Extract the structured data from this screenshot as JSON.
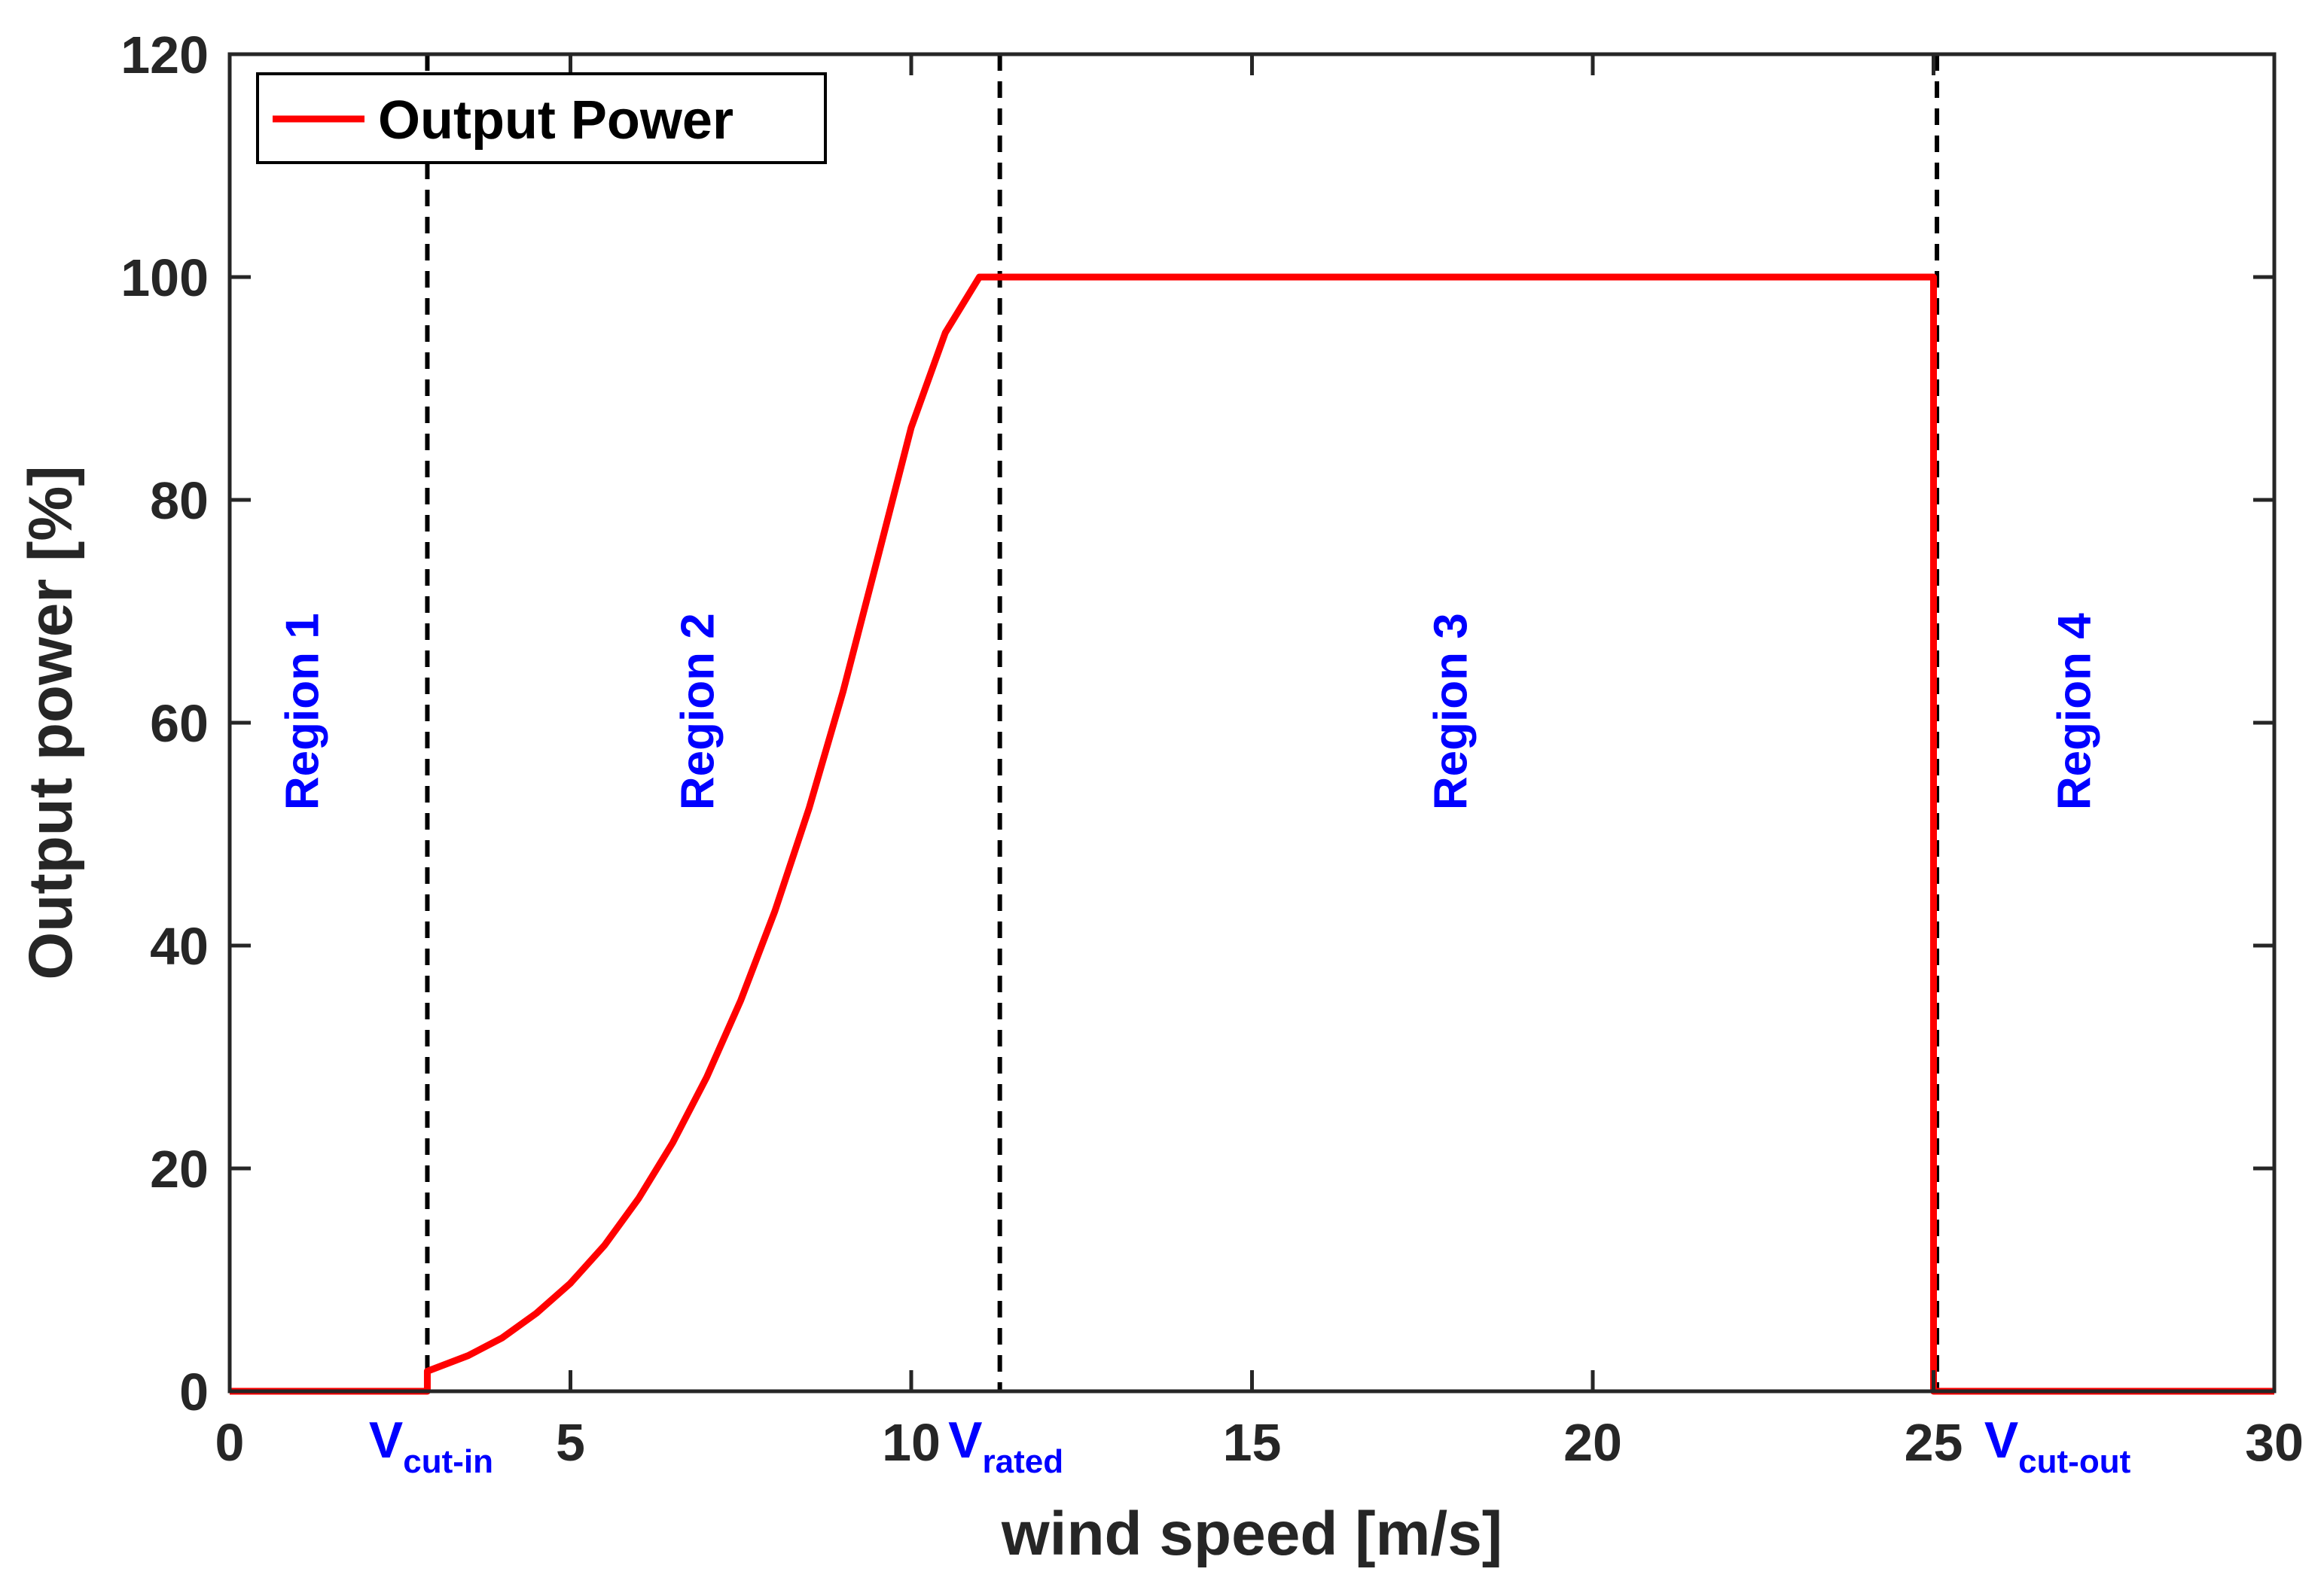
{
  "chart_data": {
    "type": "line",
    "title": "",
    "xlabel": "wind speed [m/s]",
    "ylabel": "Output power [%]",
    "xlim": [
      0,
      30
    ],
    "ylim": [
      0,
      120
    ],
    "xticks": [
      0,
      5,
      10,
      15,
      20,
      25,
      30
    ],
    "yticks": [
      0,
      20,
      40,
      60,
      80,
      100,
      120
    ],
    "grid": false,
    "legend": {
      "position": "top-left",
      "entries": [
        "Output Power"
      ]
    },
    "series": [
      {
        "name": "Output Power",
        "color": "#ff0000",
        "x": [
          0,
          2.9,
          2.9,
          3.5,
          4.0,
          4.5,
          5.0,
          5.5,
          6.0,
          6.5,
          7.0,
          7.5,
          8.0,
          8.5,
          9.0,
          9.5,
          10.0,
          10.5,
          11.0,
          11.0,
          25.0,
          25.0,
          30
        ],
        "y": [
          0,
          0,
          1.8,
          3.2,
          4.8,
          7.0,
          9.7,
          13.1,
          17.3,
          22.3,
          28.2,
          35.1,
          43.1,
          52.3,
          62.8,
          74.6,
          86.5,
          95.0,
          100,
          100,
          100,
          0,
          0
        ]
      }
    ],
    "vlines": [
      {
        "x": 2.9,
        "label_main": "V",
        "label_sub": "cut-in"
      },
      {
        "x": 11.3,
        "label_main": "V",
        "label_sub": "rated"
      },
      {
        "x": 25.05,
        "label_main": "V",
        "label_sub": "cut-out"
      }
    ],
    "regions": [
      {
        "label": "Region 1",
        "x": 1.3,
        "y": 61
      },
      {
        "label": "Region 2",
        "x": 7.1,
        "y": 61
      },
      {
        "label": "Region 3",
        "x": 18.15,
        "y": 61
      },
      {
        "label": "Region 4",
        "x": 27.3,
        "y": 61
      }
    ],
    "colors": {
      "series": "#ff0000",
      "annotation": "#0000ff",
      "axes": "#262626",
      "vline": "#000000"
    }
  }
}
